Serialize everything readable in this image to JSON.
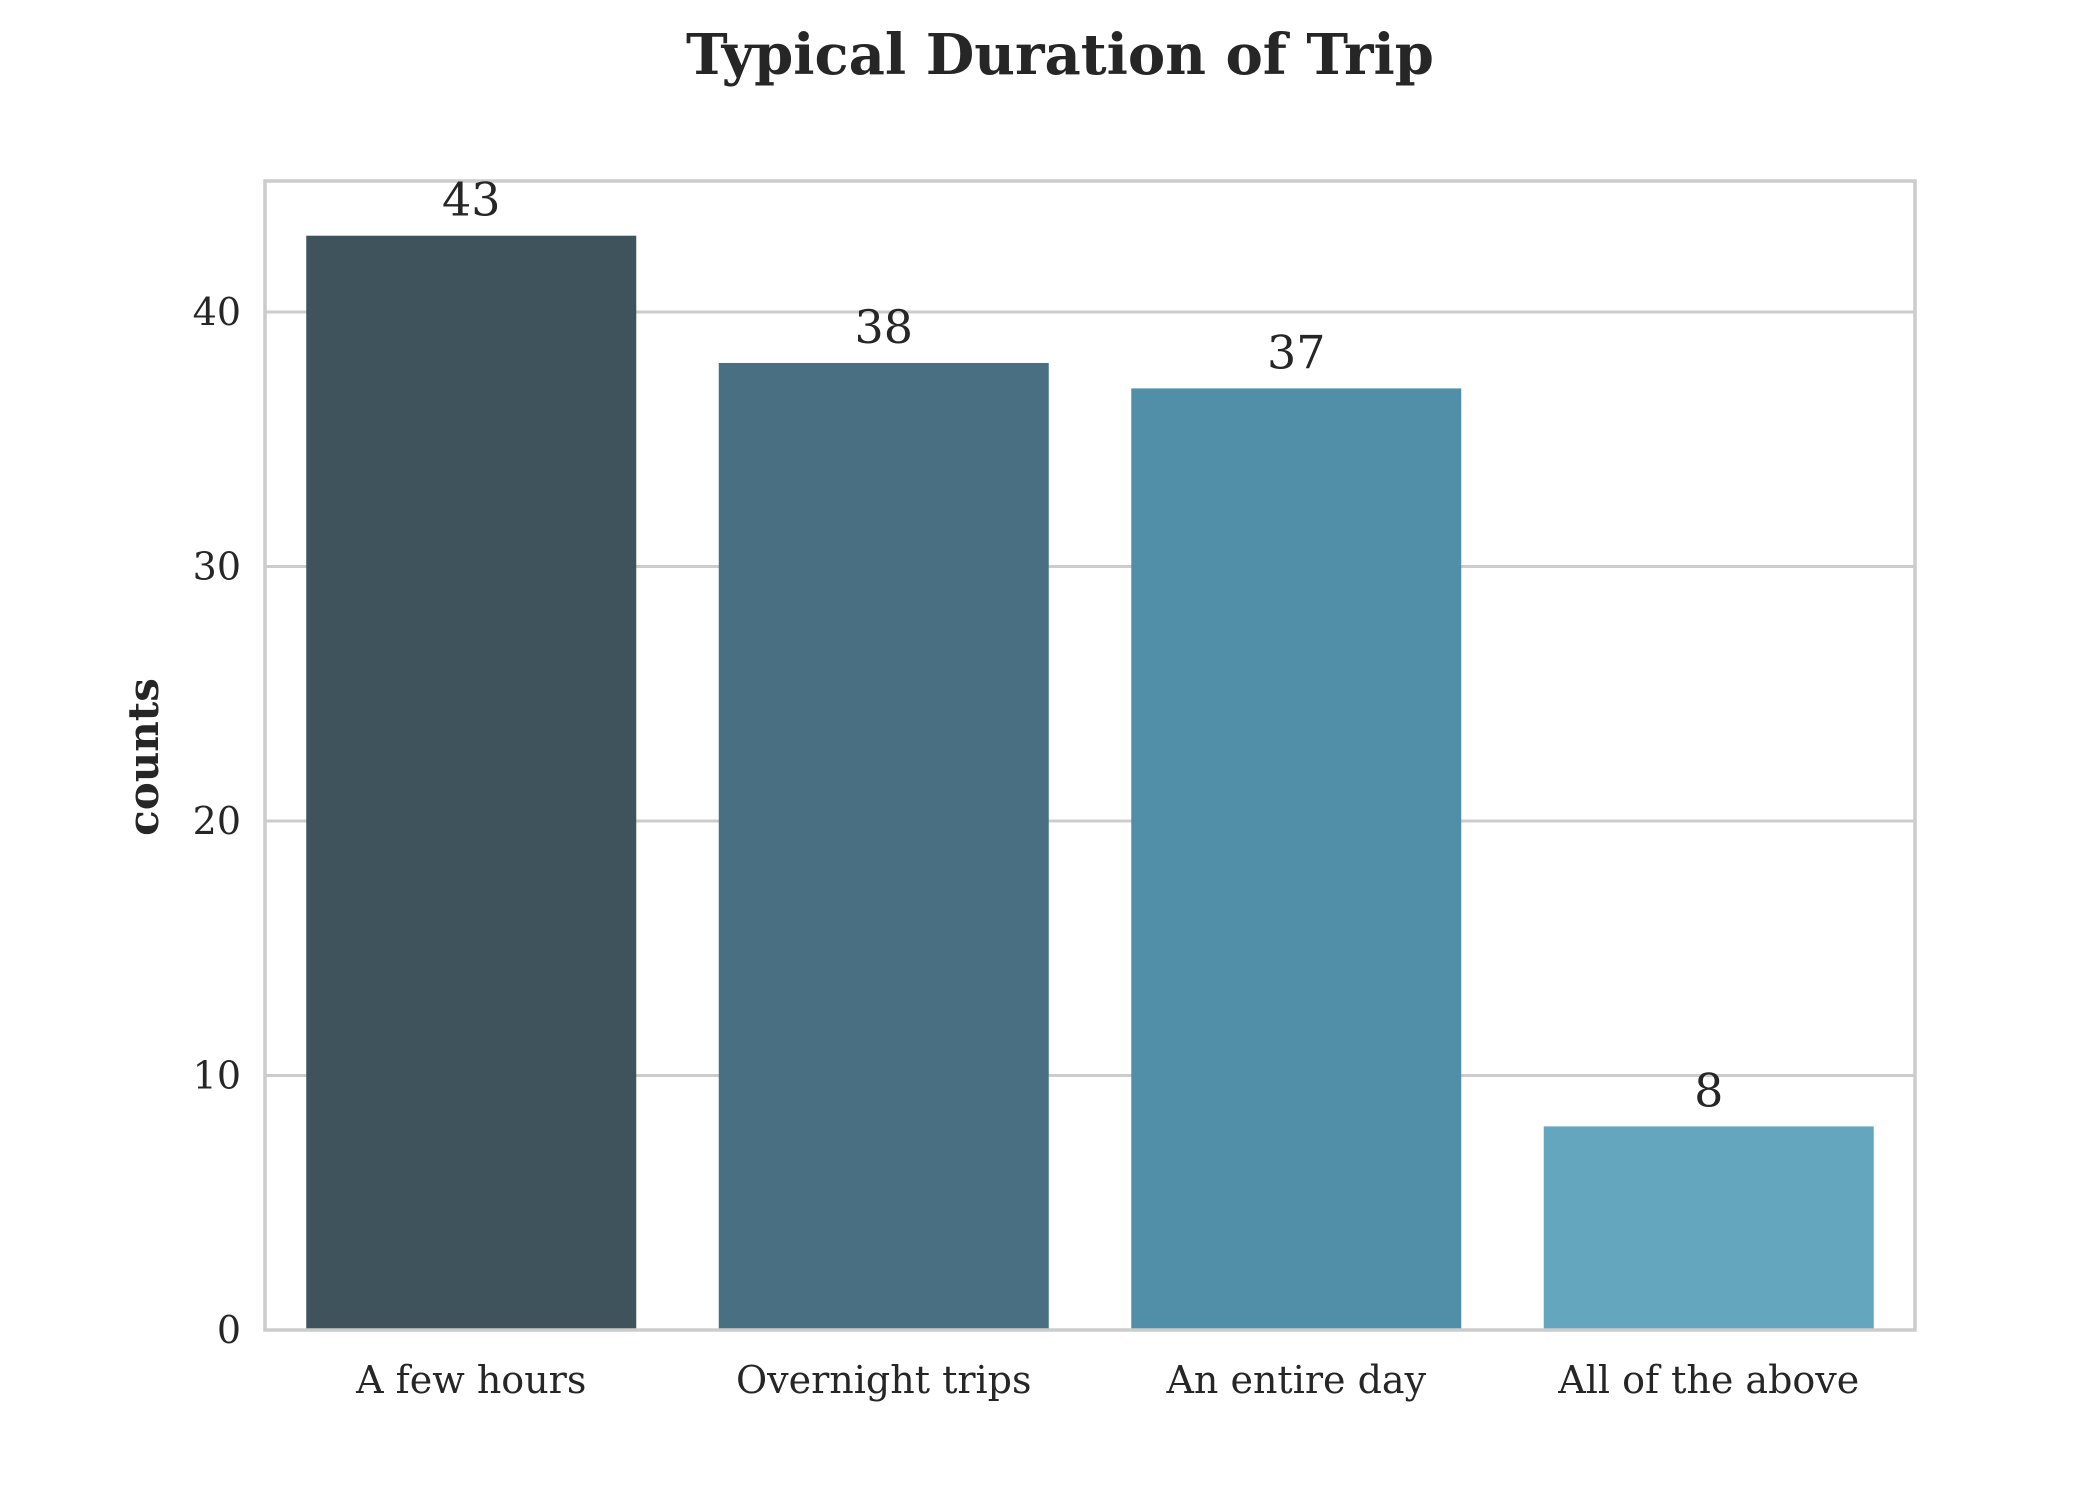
{
  "chart_data": {
    "type": "bar",
    "title": "Typical Duration of Trip",
    "xlabel": "",
    "ylabel": "counts",
    "categories": [
      "A few hours",
      "Overnight trips",
      "An entire day",
      "All of the above"
    ],
    "values": [
      43,
      38,
      37,
      8
    ],
    "data_labels": [
      "43",
      "38",
      "37",
      "8"
    ],
    "colors": [
      "#3f535c",
      "#487082",
      "#518fa9",
      "#63a6be"
    ],
    "ylim": [
      0,
      45.15
    ],
    "yticks": [
      0,
      10,
      20,
      30,
      40
    ],
    "ytick_labels": [
      "0",
      "10",
      "20",
      "30",
      "40"
    ],
    "grid": true,
    "grid_color": "#cccccc"
  }
}
